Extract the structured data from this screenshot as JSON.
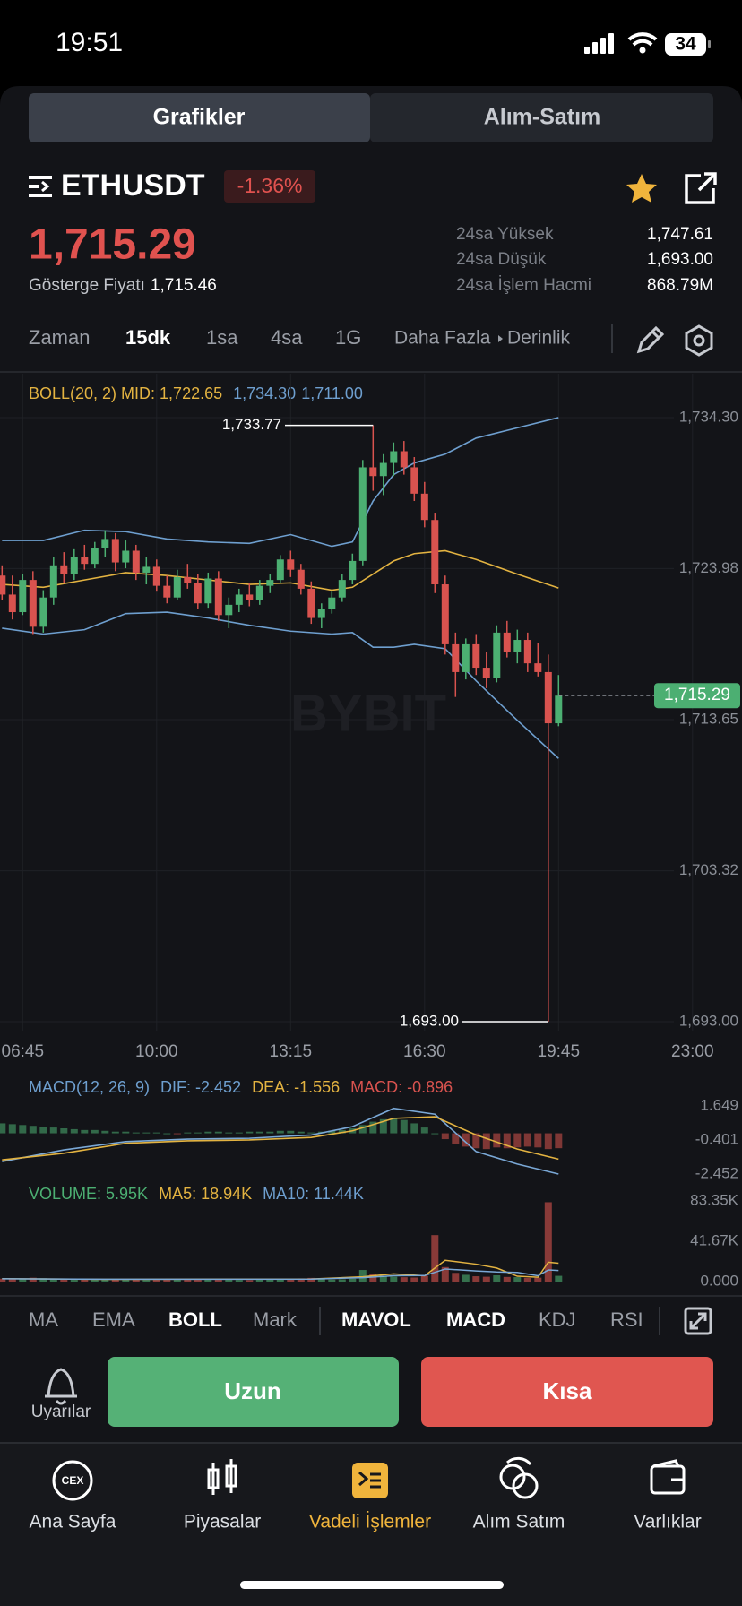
{
  "status_bar": {
    "time": "19:51",
    "battery": "34"
  },
  "tabs": [
    "Grafikler",
    "Alım-Satım"
  ],
  "header": {
    "symbol": "ETHUSDT",
    "change": "-1.36%",
    "price": "1,715.29",
    "index_label": "Gösterge Fiyatı",
    "index_price": "1,715.46",
    "stats": [
      {
        "label": "24sa Yüksek",
        "value": "1,747.61"
      },
      {
        "label": "24sa Düşük",
        "value": "1,693.00"
      },
      {
        "label": "24sa İşlem Hacmi",
        "value": "868.79M"
      }
    ]
  },
  "timeframes": [
    "Zaman",
    "15dk",
    "1sa",
    "4sa",
    "1G",
    "Daha Fazla",
    "Derinlik"
  ],
  "chart_data": [
    {
      "type": "candlestick",
      "watermark": "BYBIT",
      "legend": {
        "boll": "BOLL(20, 2) MID: 1,722.65",
        "upper": "1,734.30",
        "lower": "1,711.00"
      },
      "xlim": [
        -0.2,
        71.8
      ],
      "xticks": [
        {
          "value": 2,
          "label": "06:45"
        },
        {
          "value": 15,
          "label": "10:00"
        },
        {
          "value": 28,
          "label": "13:15"
        },
        {
          "value": 41,
          "label": "16:30"
        },
        {
          "value": 54,
          "label": "19:45"
        },
        {
          "value": 67,
          "label": "23:00"
        }
      ],
      "ylim": [
        1693.0,
        1737.3
      ],
      "yticks": [
        {
          "value": 1734.3,
          "label": "1,734.30"
        },
        {
          "value": 1723.98,
          "label": "1,723.98"
        },
        {
          "value": 1713.65,
          "label": "1,713.65"
        },
        {
          "value": 1703.32,
          "label": "1,703.32"
        },
        {
          "value": 1693.0,
          "label": "1,693.00"
        }
      ],
      "grid": true,
      "up_color": "#4caf72",
      "down_color": "#d9534f",
      "x": [
        0,
        1,
        2,
        3,
        4,
        5,
        6,
        7,
        8,
        9,
        10,
        11,
        12,
        13,
        14,
        15,
        16,
        17,
        18,
        19,
        20,
        21,
        22,
        23,
        24,
        25,
        26,
        27,
        28,
        29,
        30,
        31,
        32,
        33,
        34,
        35,
        36,
        37,
        38,
        39,
        40,
        41,
        42,
        43,
        44,
        45,
        46,
        47,
        48,
        49,
        50,
        51,
        52,
        53,
        54
      ],
      "open": [
        1723.5,
        1722.2,
        1721.0,
        1723.2,
        1720.0,
        1722.0,
        1724.2,
        1723.6,
        1724.8,
        1724.3,
        1725.4,
        1726.0,
        1724.4,
        1725.2,
        1723.7,
        1724.1,
        1722.8,
        1722.0,
        1723.4,
        1723.0,
        1721.6,
        1723.3,
        1720.8,
        1721.5,
        1722.2,
        1721.8,
        1722.8,
        1723.2,
        1724.6,
        1723.9,
        1722.6,
        1720.6,
        1721.2,
        1722.0,
        1723.2,
        1724.5,
        1730.9,
        1730.3,
        1731.2,
        1732.0,
        1730.9,
        1729.1,
        1727.3,
        1722.9,
        1718.8,
        1716.9,
        1718.8,
        1717.2,
        1716.5,
        1719.6,
        1718.3,
        1719.1,
        1717.5,
        1716.9,
        1713.4
      ],
      "high": [
        1724.2,
        1723.5,
        1723.6,
        1723.8,
        1722.5,
        1724.8,
        1725.1,
        1725.3,
        1725.6,
        1725.8,
        1726.6,
        1726.4,
        1725.9,
        1725.6,
        1724.8,
        1724.6,
        1723.5,
        1723.9,
        1724.3,
        1723.6,
        1723.7,
        1723.8,
        1722.0,
        1722.6,
        1723.0,
        1723.2,
        1723.6,
        1724.9,
        1725.2,
        1724.3,
        1723.1,
        1721.6,
        1722.4,
        1723.6,
        1725.0,
        1731.4,
        1733.77,
        1731.8,
        1732.6,
        1732.7,
        1731.6,
        1729.9,
        1727.8,
        1723.5,
        1719.6,
        1719.2,
        1719.5,
        1718.3,
        1720.1,
        1720.4,
        1719.8,
        1719.6,
        1718.9,
        1718.1,
        1716.7
      ],
      "low": [
        1721.8,
        1720.5,
        1720.8,
        1719.5,
        1719.6,
        1721.5,
        1723.0,
        1723.2,
        1723.9,
        1724.0,
        1724.8,
        1723.8,
        1724.0,
        1723.2,
        1722.9,
        1722.4,
        1721.6,
        1721.8,
        1722.6,
        1721.2,
        1721.3,
        1720.4,
        1719.9,
        1721.0,
        1721.4,
        1721.5,
        1722.3,
        1723.0,
        1723.4,
        1722.2,
        1720.2,
        1719.9,
        1720.9,
        1721.7,
        1722.9,
        1724.2,
        1729.3,
        1729.0,
        1730.3,
        1730.4,
        1728.6,
        1726.8,
        1722.3,
        1718.1,
        1715.2,
        1716.4,
        1716.7,
        1715.8,
        1716.2,
        1717.9,
        1717.5,
        1716.9,
        1716.6,
        1693.0,
        1713.2
      ],
      "close": [
        1722.2,
        1721.0,
        1723.2,
        1720.0,
        1722.0,
        1724.2,
        1723.6,
        1724.8,
        1724.3,
        1725.4,
        1726.0,
        1724.4,
        1725.2,
        1723.7,
        1724.1,
        1722.8,
        1722.0,
        1723.4,
        1723.0,
        1721.6,
        1723.3,
        1720.8,
        1721.5,
        1722.2,
        1721.8,
        1722.8,
        1723.2,
        1724.6,
        1723.9,
        1722.6,
        1720.6,
        1721.2,
        1722.0,
        1723.2,
        1724.5,
        1730.9,
        1730.3,
        1731.2,
        1732.0,
        1730.9,
        1729.1,
        1727.3,
        1722.9,
        1718.8,
        1716.9,
        1718.8,
        1717.2,
        1716.5,
        1719.6,
        1718.3,
        1719.1,
        1717.5,
        1716.9,
        1713.4,
        1715.29
      ],
      "annotations": {
        "high": "1,733.77",
        "low": "1,693.00",
        "last": "1,715.29"
      },
      "bands": {
        "x": [
          0,
          4,
          8,
          12,
          16,
          20,
          24,
          28,
          32,
          34,
          36,
          38,
          40,
          43,
          46,
          50,
          54
        ],
        "upper": [
          1725.9,
          1725.9,
          1726.6,
          1726.5,
          1726.0,
          1725.8,
          1725.7,
          1726.3,
          1725.5,
          1725.8,
          1728.6,
          1730.4,
          1731.2,
          1731.8,
          1732.9,
          1733.6,
          1734.3
        ],
        "mid": [
          1722.9,
          1722.7,
          1723.2,
          1723.7,
          1723.5,
          1723.2,
          1722.9,
          1723.0,
          1722.5,
          1722.7,
          1723.6,
          1724.5,
          1725.0,
          1725.2,
          1724.6,
          1723.6,
          1722.65
        ],
        "lower": [
          1719.9,
          1719.5,
          1719.8,
          1720.9,
          1721.0,
          1720.6,
          1720.1,
          1719.7,
          1719.5,
          1719.6,
          1718.6,
          1718.6,
          1718.8,
          1718.5,
          1716.3,
          1713.6,
          1711.0
        ],
        "band_color": "#6e9fcf",
        "mid_color": "#e3b341"
      }
    },
    {
      "type": "macd",
      "legend": {
        "title": "MACD(12, 26, 9)",
        "dif": "DIF: -2.452",
        "dea": "DEA: -1.556",
        "macd": "MACD: -0.896"
      },
      "xlim": [
        -0.2,
        71.8
      ],
      "ylim": [
        -2.452,
        1.649
      ],
      "yticks": [
        1.649,
        -0.401,
        -2.452
      ],
      "x": [
        0,
        1,
        2,
        3,
        4,
        5,
        6,
        7,
        8,
        9,
        10,
        11,
        12,
        13,
        14,
        15,
        16,
        17,
        18,
        19,
        20,
        21,
        22,
        23,
        24,
        25,
        26,
        27,
        28,
        29,
        30,
        31,
        32,
        33,
        34,
        35,
        36,
        37,
        38,
        39,
        40,
        41,
        42,
        43,
        44,
        45,
        46,
        47,
        48,
        49,
        50,
        51,
        52,
        53,
        54
      ],
      "values": [
        0.6,
        0.55,
        0.5,
        0.45,
        0.4,
        0.35,
        0.3,
        0.25,
        0.2,
        0.2,
        0.15,
        0.1,
        0.1,
        0.05,
        0.05,
        0.05,
        0.0,
        -0.05,
        0.05,
        0.05,
        0.1,
        0.1,
        0.05,
        0.05,
        0.1,
        0.1,
        0.1,
        0.15,
        0.15,
        0.1,
        0.05,
        0.1,
        0.15,
        0.2,
        0.3,
        0.5,
        0.7,
        0.85,
        0.9,
        0.8,
        0.6,
        0.35,
        0.0,
        -0.35,
        -0.65,
        -0.8,
        -0.9,
        -0.95,
        -0.85,
        -0.9,
        -0.85,
        -0.8,
        -0.85,
        -0.95,
        -0.896
      ],
      "lines": {
        "x": [
          0,
          6,
          12,
          18,
          24,
          30,
          34,
          38,
          42,
          46,
          50,
          54
        ],
        "dif": [
          -1.7,
          -1.0,
          -0.5,
          -0.35,
          -0.3,
          -0.1,
          0.4,
          1.5,
          1.15,
          -1.1,
          -1.85,
          -2.452
        ],
        "dea": [
          -1.6,
          -1.2,
          -0.6,
          -0.45,
          -0.4,
          -0.25,
          0.15,
          0.9,
          1.0,
          -0.1,
          -0.95,
          -1.556
        ],
        "dif_color": "#7aa8d6",
        "dea_color": "#e3b341"
      },
      "up_color": "#4caf72",
      "down_color": "#d9534f"
    },
    {
      "type": "volume",
      "legend": {
        "volume": "VOLUME: 5.95K",
        "ma5": "MA5: 18.94K",
        "ma10": "MA10: 11.44K"
      },
      "xlim": [
        -0.2,
        71.8
      ],
      "ylim": [
        0,
        83350
      ],
      "yticks": [
        {
          "value": 83350,
          "label": "83.35K"
        },
        {
          "value": 41670,
          "label": "41.67K"
        },
        {
          "value": 0,
          "label": "0.000"
        }
      ],
      "x": [
        0,
        1,
        2,
        3,
        4,
        5,
        6,
        7,
        8,
        9,
        10,
        11,
        12,
        13,
        14,
        15,
        16,
        17,
        18,
        19,
        20,
        21,
        22,
        23,
        24,
        25,
        26,
        27,
        28,
        29,
        30,
        31,
        32,
        33,
        34,
        35,
        36,
        37,
        38,
        39,
        40,
        41,
        42,
        43,
        44,
        45,
        46,
        47,
        48,
        49,
        50,
        51,
        52,
        53,
        54
      ],
      "values": [
        3000,
        2500,
        2800,
        4000,
        3500,
        2200,
        2000,
        1800,
        2600,
        2400,
        2000,
        2500,
        1900,
        2300,
        1800,
        2100,
        2700,
        2400,
        1900,
        2600,
        2200,
        3100,
        2800,
        1700,
        1600,
        2000,
        1900,
        2200,
        2500,
        3300,
        3800,
        2400,
        2100,
        2300,
        3000,
        12000,
        8000,
        6000,
        5000,
        4500,
        4200,
        6000,
        48000,
        15000,
        9000,
        7000,
        5500,
        5000,
        6500,
        4800,
        4600,
        3800,
        4000,
        82000,
        5950
      ],
      "ma": {
        "x": [
          0,
          10,
          20,
          30,
          35,
          38,
          41,
          43,
          46,
          48,
          50,
          52,
          53,
          54
        ],
        "ma5": [
          3000,
          2300,
          2500,
          2700,
          5000,
          8000,
          6000,
          22000,
          18000,
          14000,
          5500,
          4500,
          20000,
          18940
        ],
        "ma10": [
          2900,
          2400,
          2400,
          2600,
          4000,
          6000,
          6200,
          13000,
          11000,
          10000,
          9500,
          6000,
          12000,
          11440
        ],
        "ma5_color": "#e3b341",
        "ma10_color": "#7aa8d6"
      }
    }
  ],
  "indicators": [
    "MA",
    "EMA",
    "BOLL",
    "Mark",
    "MAVOL",
    "MACD",
    "KDJ",
    "RSI"
  ],
  "actions": {
    "alerts": "Uyarılar",
    "long": "Uzun",
    "short": "Kısa"
  },
  "nav": {
    "icon_text": "CEX",
    "items": [
      "Ana Sayfa",
      "Piyasalar",
      "Vadeli İşlemler",
      "Alım Satım",
      "Varlıklar"
    ]
  }
}
